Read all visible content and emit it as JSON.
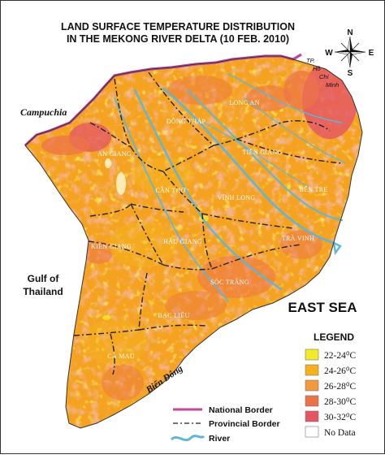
{
  "title": {
    "line1": "LAND SURFACE TEMPERATURE DISTRIBUTION",
    "line2": "IN THE MEKONG RIVER DELTA (10 FEB. 2010)"
  },
  "compass": {
    "n": "N",
    "s": "S",
    "e": "E",
    "w": "W"
  },
  "places": {
    "campuchia": "Campuchia",
    "gulf_line1": "Gulf of",
    "gulf_line2": "Thailand",
    "east_sea": "EAST SEA",
    "bien_dong": "Biển Đông",
    "hcm_1": "TP.",
    "hcm_2": "Hồ",
    "hcm_3": "Chí",
    "hcm_4": "Minh"
  },
  "provinces": {
    "long_an": "LONG AN",
    "dong_thap": "ĐỒNG THÁP",
    "an_giang": "AN GIANG",
    "tien_giang": "TIỀN GIANG",
    "can_tho": "CẦN THƠ",
    "vinh_long": "VĨNH LONG",
    "ben_tre": "BẾN TRE",
    "kien_giang": "KIÊN GIANG",
    "hau_giang": "HẬU GIANG",
    "tra_vinh": "TRÀ VINH",
    "soc_trang": "SÓC TRĂNG",
    "bac_lieu": "BẠC LIÊU",
    "ca_mau": "CÀ MAU"
  },
  "legend": {
    "title": "LEGEND",
    "classes": [
      {
        "label": "22-24⁰C",
        "color": "#f2ea2a"
      },
      {
        "label": "24-26⁰C",
        "color": "#f6b21c"
      },
      {
        "label": "26-28⁰C",
        "color": "#f19a3c"
      },
      {
        "label": "28-30⁰C",
        "color": "#ec7348"
      },
      {
        "label": "30-32⁰C",
        "color": "#e45565"
      },
      {
        "label": "No Data",
        "color": "#ffffff"
      }
    ]
  },
  "line_legend": {
    "national": "National Border",
    "provincial": "Provincial Border",
    "river": "River"
  },
  "colors": {
    "national_border": "#c0479a",
    "provincial_border": "#222222",
    "river": "#5fb6d6",
    "base_land": "#f4a21f"
  }
}
